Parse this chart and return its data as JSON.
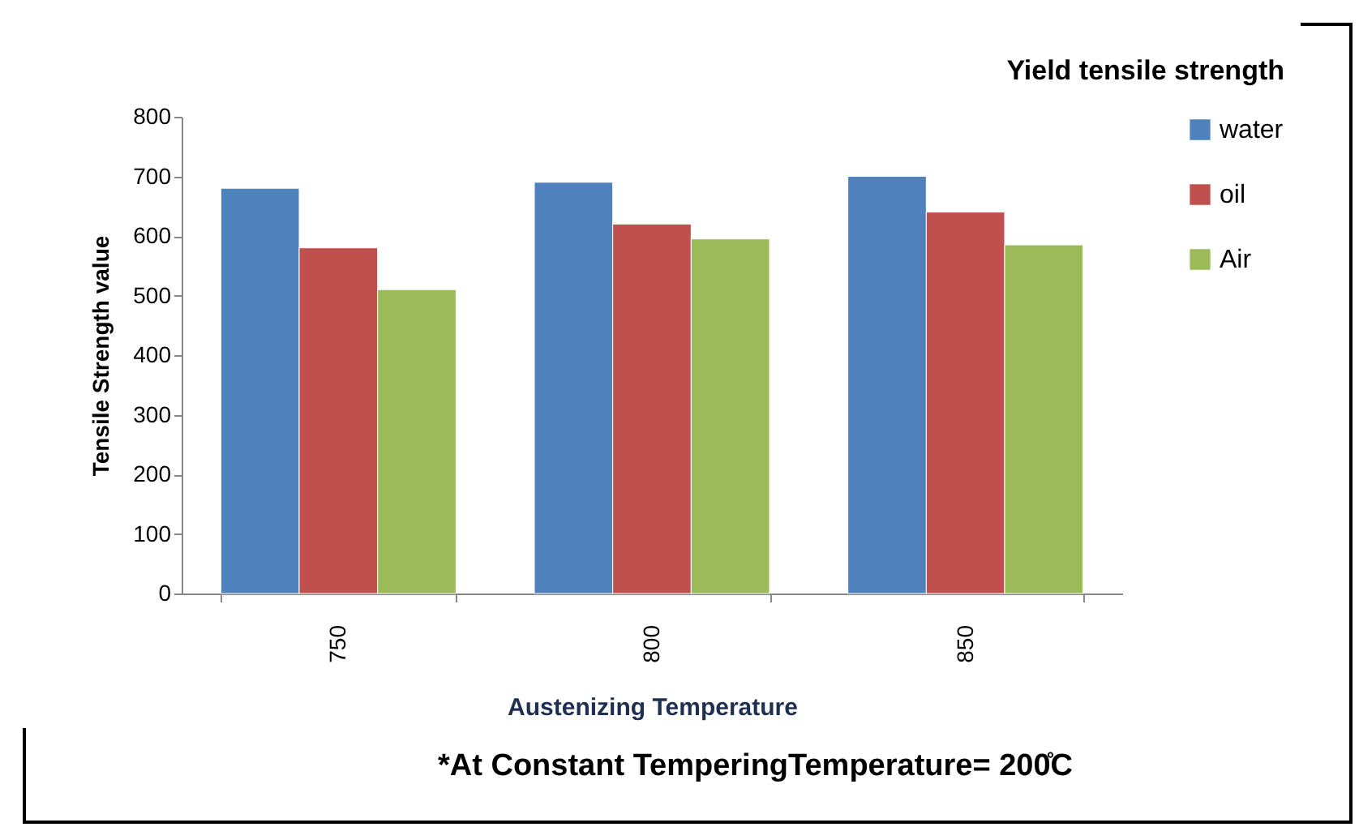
{
  "chart_data": {
    "type": "bar",
    "title": "Yield tensile strength",
    "xlabel": "Austenizing Temperature",
    "ylabel": "Tensile Strength value",
    "categories": [
      "750",
      "800",
      "850"
    ],
    "series": [
      {
        "name": "water",
        "color": "#4f81bd",
        "values": [
          680,
          690,
          700
        ]
      },
      {
        "name": "oil",
        "color": "#c0504d",
        "values": [
          580,
          620,
          640
        ]
      },
      {
        "name": "Air",
        "color": "#9bbb59",
        "values": [
          510,
          595,
          585
        ]
      }
    ],
    "ylim": [
      0,
      800
    ],
    "yticks": [
      0,
      100,
      200,
      300,
      400,
      500,
      600,
      700,
      800
    ],
    "grid": false,
    "legend": "right",
    "annotations": [
      "*At Constant TemperingTemperature= 200̊C"
    ]
  }
}
